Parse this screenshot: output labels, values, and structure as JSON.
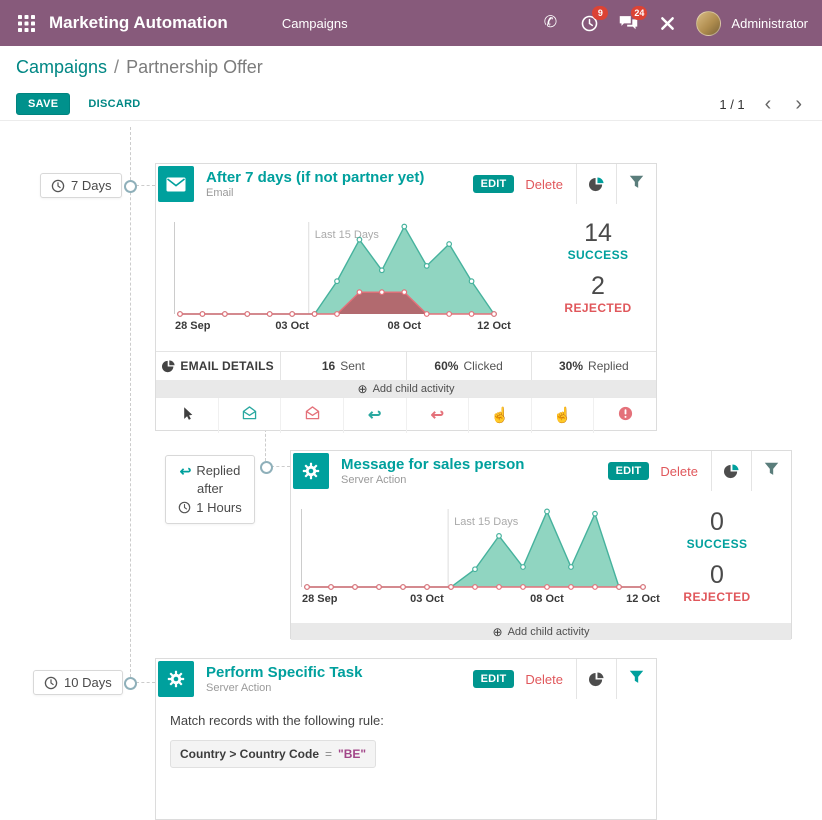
{
  "colors": {
    "navbar": "#875A7B",
    "teal": "#00A09D",
    "teal_link": "#008784",
    "red": "#e0575b",
    "success_stroke": "#46b29d",
    "success_fill": "#90d5c1",
    "rejected_stroke": "#e4717a",
    "rejected_fill": "#b26a6f",
    "rule_value_magenta": "#a24689"
  },
  "icons": {
    "phone": "✆",
    "reply": "↩",
    "hand_pointer": "☝",
    "add_child_plus": "⊕",
    "pager_prev": "‹",
    "pager_next": "›"
  },
  "navbar": {
    "app_title": "Marketing Automation",
    "menu": "Campaigns",
    "activities_badge": "9",
    "messages_badge": "24",
    "user": "Administrator"
  },
  "breadcrumb": {
    "parent": "Campaigns",
    "separator": "/",
    "current": "Partnership Offer"
  },
  "controls": {
    "save": "SAVE",
    "discard": "DISCARD",
    "pager": "1 / 1"
  },
  "timeline": {
    "activity1_delay": "7 Days",
    "activity2_trigger": "Replied",
    "activity2_after": "after",
    "activity2_delay": "1 Hours",
    "activity3_delay": "10 Days"
  },
  "cards": [
    {
      "title": "After 7 days (if not partner yet)",
      "subtitle": "Email",
      "edit": "EDIT",
      "delete": "Delete",
      "success_count": "14",
      "success_label": "SUCCESS",
      "rejected_count": "2",
      "rejected_label": "REJECTED",
      "details": {
        "header": "EMAIL DETAILS",
        "sent": "16",
        "sent_label": "Sent",
        "clicked": "60%",
        "clicked_label": "Clicked",
        "replied": "30%",
        "replied_label": "Replied"
      },
      "add_child": "Add child activity"
    },
    {
      "title": "Message for sales person",
      "subtitle": "Server Action",
      "edit": "EDIT",
      "delete": "Delete",
      "success_count": "0",
      "success_label": "SUCCESS",
      "rejected_count": "0",
      "rejected_label": "REJECTED",
      "add_child": "Add child activity"
    },
    {
      "title": "Perform Specific Task",
      "subtitle": "Server Action",
      "edit": "EDIT",
      "delete": "Delete",
      "rule_intro": "Match records with the following rule:",
      "rule_field": "Country > Country Code",
      "rule_operator": "=",
      "rule_value": "\"BE\""
    }
  ],
  "chart_data": [
    {
      "type": "area",
      "annotation": "Last 15 Days",
      "x_ticks": [
        {
          "index": 0,
          "label": "28 Sep"
        },
        {
          "index": 5,
          "label": "03 Oct"
        },
        {
          "index": 10,
          "label": "08 Oct"
        },
        {
          "index": 14,
          "label": "12 Oct"
        }
      ],
      "ylim": [
        0,
        4.3
      ],
      "grid_fraction": 0.41,
      "series": [
        {
          "name": "Success",
          "color": "#46b29d",
          "fill": "#90d5c1",
          "values": [
            0,
            0,
            0,
            0,
            0,
            0,
            0,
            1.5,
            3.4,
            2,
            4,
            2.2,
            3.2,
            1.5,
            0
          ]
        },
        {
          "name": "Rejected",
          "color": "#e4717a",
          "fill": "#b26a6f",
          "values": [
            0,
            0,
            0,
            0,
            0,
            0,
            0,
            0,
            1,
            1,
            1,
            0,
            0,
            0,
            0
          ]
        }
      ]
    },
    {
      "type": "area",
      "annotation": "Last 15 Days",
      "x_ticks": [
        {
          "index": 0,
          "label": "28 Sep"
        },
        {
          "index": 5,
          "label": "03 Oct"
        },
        {
          "index": 10,
          "label": "08 Oct"
        },
        {
          "index": 14,
          "label": "12 Oct"
        }
      ],
      "ylim": [
        0,
        3.6
      ],
      "grid_fraction": 0.42,
      "series": [
        {
          "name": "Success",
          "color": "#46b29d",
          "fill": "#90d5c1",
          "values": [
            0,
            0,
            0,
            0,
            0,
            0,
            0,
            0.8,
            2.3,
            0.9,
            3.4,
            0.9,
            3.3,
            0,
            0
          ]
        },
        {
          "name": "Rejected",
          "color": "#e4717a",
          "fill": "#b26a6f",
          "values": [
            0,
            0,
            0,
            0,
            0,
            0,
            0,
            0,
            0,
            0,
            0,
            0,
            0,
            0,
            0
          ]
        }
      ]
    }
  ]
}
